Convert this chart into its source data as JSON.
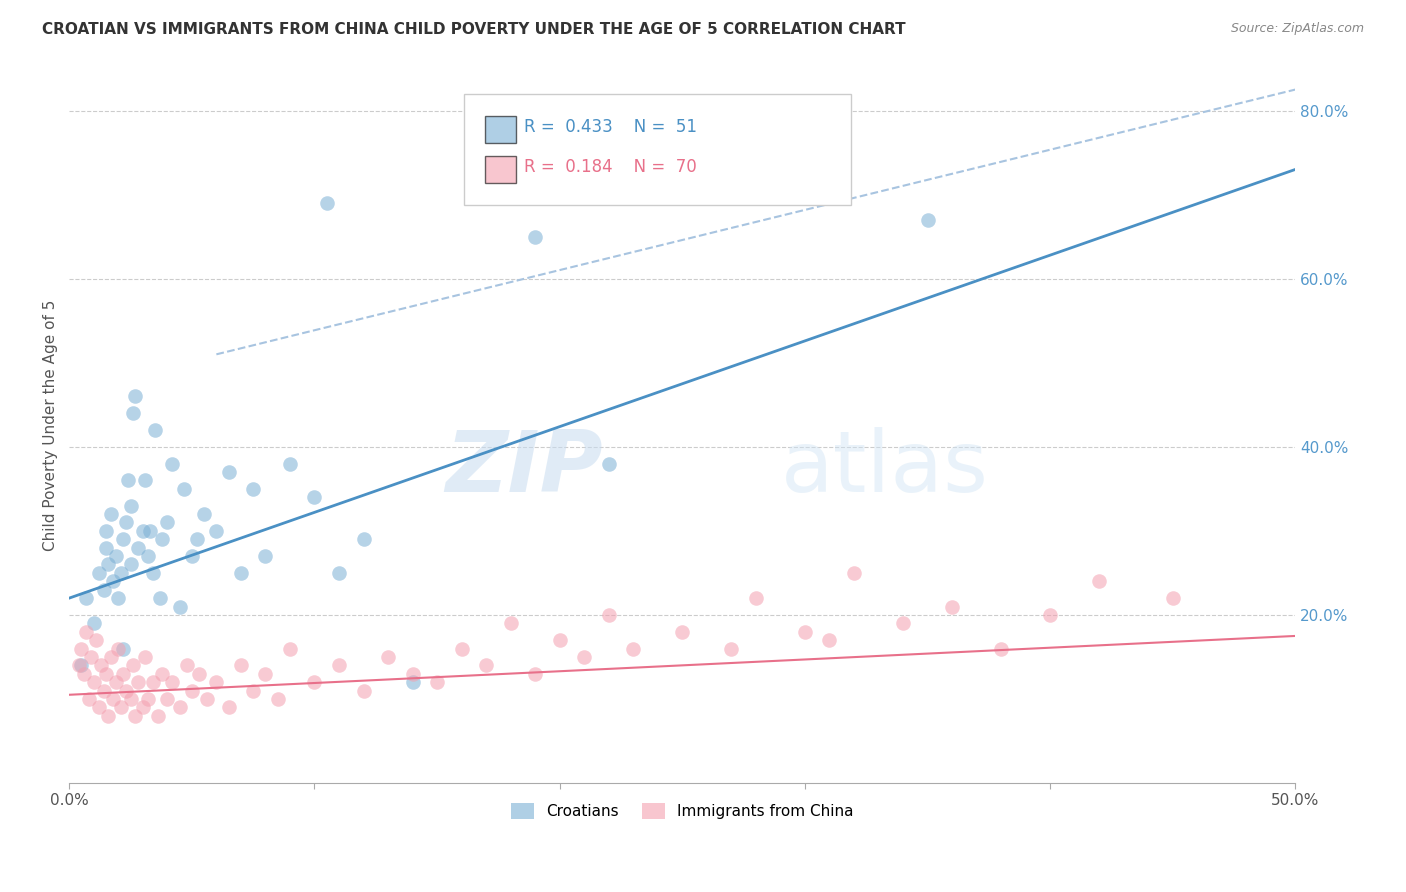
{
  "title": "CROATIAN VS IMMIGRANTS FROM CHINA CHILD POVERTY UNDER THE AGE OF 5 CORRELATION CHART",
  "source": "Source: ZipAtlas.com",
  "ylabel": "Child Poverty Under the Age of 5",
  "xlim": [
    0.0,
    0.5
  ],
  "ylim": [
    0.0,
    0.85
  ],
  "legend1_label": "Croatians",
  "legend2_label": "Immigrants from China",
  "R1": 0.433,
  "N1": 51,
  "R2": 0.184,
  "N2": 70,
  "color_blue": "#7BAFD4",
  "color_pink": "#F4A0B0",
  "color_blue_line": "#4A90C4",
  "color_pink_line": "#E8708A",
  "color_dashed": "#A8C4E0",
  "watermark_zip": "ZIP",
  "watermark_atlas": "atlas",
  "blue_line_x": [
    0.0,
    0.5
  ],
  "blue_line_y": [
    0.22,
    0.73
  ],
  "pink_line_x": [
    0.0,
    0.5
  ],
  "pink_line_y": [
    0.105,
    0.175
  ],
  "dash_line_x": [
    0.06,
    0.5
  ],
  "dash_line_y": [
    0.51,
    0.825
  ],
  "croatians_x": [
    0.005,
    0.007,
    0.01,
    0.012,
    0.014,
    0.015,
    0.015,
    0.016,
    0.017,
    0.018,
    0.019,
    0.02,
    0.021,
    0.022,
    0.022,
    0.023,
    0.024,
    0.025,
    0.025,
    0.026,
    0.027,
    0.028,
    0.03,
    0.031,
    0.032,
    0.033,
    0.034,
    0.035,
    0.037,
    0.038,
    0.04,
    0.042,
    0.045,
    0.047,
    0.05,
    0.052,
    0.055,
    0.06,
    0.065,
    0.07,
    0.075,
    0.08,
    0.09,
    0.1,
    0.105,
    0.11,
    0.12,
    0.14,
    0.19,
    0.22,
    0.35
  ],
  "croatians_y": [
    0.14,
    0.22,
    0.19,
    0.25,
    0.23,
    0.28,
    0.3,
    0.26,
    0.32,
    0.24,
    0.27,
    0.22,
    0.25,
    0.16,
    0.29,
    0.31,
    0.36,
    0.26,
    0.33,
    0.44,
    0.46,
    0.28,
    0.3,
    0.36,
    0.27,
    0.3,
    0.25,
    0.42,
    0.22,
    0.29,
    0.31,
    0.38,
    0.21,
    0.35,
    0.27,
    0.29,
    0.32,
    0.3,
    0.37,
    0.25,
    0.35,
    0.27,
    0.38,
    0.34,
    0.69,
    0.25,
    0.29,
    0.12,
    0.65,
    0.38,
    0.67
  ],
  "china_x": [
    0.004,
    0.005,
    0.006,
    0.007,
    0.008,
    0.009,
    0.01,
    0.011,
    0.012,
    0.013,
    0.014,
    0.015,
    0.016,
    0.017,
    0.018,
    0.019,
    0.02,
    0.021,
    0.022,
    0.023,
    0.025,
    0.026,
    0.027,
    0.028,
    0.03,
    0.031,
    0.032,
    0.034,
    0.036,
    0.038,
    0.04,
    0.042,
    0.045,
    0.048,
    0.05,
    0.053,
    0.056,
    0.06,
    0.065,
    0.07,
    0.075,
    0.08,
    0.085,
    0.09,
    0.1,
    0.11,
    0.12,
    0.13,
    0.14,
    0.15,
    0.16,
    0.17,
    0.18,
    0.19,
    0.2,
    0.21,
    0.22,
    0.23,
    0.25,
    0.27,
    0.28,
    0.3,
    0.31,
    0.32,
    0.34,
    0.36,
    0.38,
    0.4,
    0.42,
    0.45
  ],
  "china_y": [
    0.14,
    0.16,
    0.13,
    0.18,
    0.1,
    0.15,
    0.12,
    0.17,
    0.09,
    0.14,
    0.11,
    0.13,
    0.08,
    0.15,
    0.1,
    0.12,
    0.16,
    0.09,
    0.13,
    0.11,
    0.1,
    0.14,
    0.08,
    0.12,
    0.09,
    0.15,
    0.1,
    0.12,
    0.08,
    0.13,
    0.1,
    0.12,
    0.09,
    0.14,
    0.11,
    0.13,
    0.1,
    0.12,
    0.09,
    0.14,
    0.11,
    0.13,
    0.1,
    0.16,
    0.12,
    0.14,
    0.11,
    0.15,
    0.13,
    0.12,
    0.16,
    0.14,
    0.19,
    0.13,
    0.17,
    0.15,
    0.2,
    0.16,
    0.18,
    0.16,
    0.22,
    0.18,
    0.17,
    0.25,
    0.19,
    0.21,
    0.16,
    0.2,
    0.24,
    0.22
  ]
}
